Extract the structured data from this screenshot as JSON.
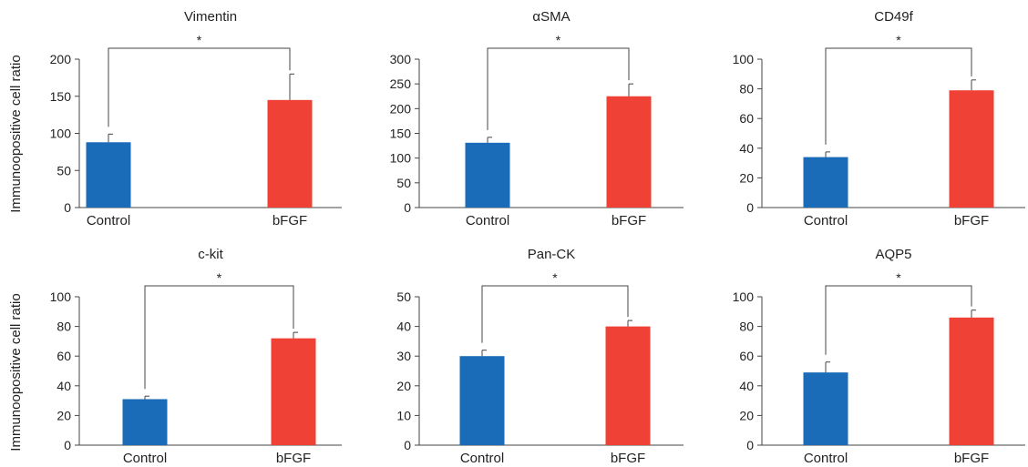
{
  "figure": {
    "ylabel": "Immunoopositive cell ratio",
    "significance_mark": "*"
  },
  "chart_data": [
    {
      "type": "bar",
      "title": "Vimentin",
      "categories": [
        "Control",
        "bFGF"
      ],
      "values": [
        88,
        145
      ],
      "errors": [
        11,
        35
      ],
      "ylim": [
        0,
        200
      ],
      "yticks": [
        0,
        50,
        100,
        150,
        200
      ],
      "colors": [
        "#1a6bb8",
        "#ef4136"
      ],
      "grid": false,
      "significant": true
    },
    {
      "type": "bar",
      "title": "αSMA",
      "categories": [
        "Control",
        "bFGF"
      ],
      "values": [
        131,
        225
      ],
      "errors": [
        11,
        25
      ],
      "ylim": [
        0,
        300
      ],
      "yticks": [
        0,
        50,
        100,
        150,
        200,
        250,
        300
      ],
      "colors": [
        "#1a6bb8",
        "#ef4136"
      ],
      "grid": false,
      "significant": true
    },
    {
      "type": "bar",
      "title": "CD49f",
      "categories": [
        "Control",
        "bFGF"
      ],
      "values": [
        34,
        79
      ],
      "errors": [
        3.5,
        7
      ],
      "ylim": [
        0,
        100
      ],
      "yticks": [
        0,
        20,
        40,
        60,
        80,
        100
      ],
      "colors": [
        "#1a6bb8",
        "#ef4136"
      ],
      "grid": false,
      "significant": true
    },
    {
      "type": "bar",
      "title": "c-kit",
      "categories": [
        "Control",
        "bFGF"
      ],
      "values": [
        31,
        72
      ],
      "errors": [
        2,
        4
      ],
      "ylim": [
        0,
        100
      ],
      "yticks": [
        0,
        20,
        40,
        60,
        80,
        100
      ],
      "colors": [
        "#1a6bb8",
        "#ef4136"
      ],
      "grid": false,
      "significant": true
    },
    {
      "type": "bar",
      "title": "Pan-CK",
      "categories": [
        "Control",
        "bFGF"
      ],
      "values": [
        30,
        40
      ],
      "errors": [
        2,
        2
      ],
      "ylim": [
        0,
        50
      ],
      "yticks": [
        0,
        10,
        20,
        30,
        40,
        50
      ],
      "colors": [
        "#1a6bb8",
        "#ef4136"
      ],
      "grid": false,
      "significant": true
    },
    {
      "type": "bar",
      "title": "AQP5",
      "categories": [
        "Control",
        "bFGF"
      ],
      "values": [
        49,
        86
      ],
      "errors": [
        7,
        5
      ],
      "ylim": [
        0,
        100
      ],
      "yticks": [
        0,
        20,
        40,
        60,
        80,
        100
      ],
      "colors": [
        "#1a6bb8",
        "#ef4136"
      ],
      "grid": false,
      "significant": true
    }
  ]
}
